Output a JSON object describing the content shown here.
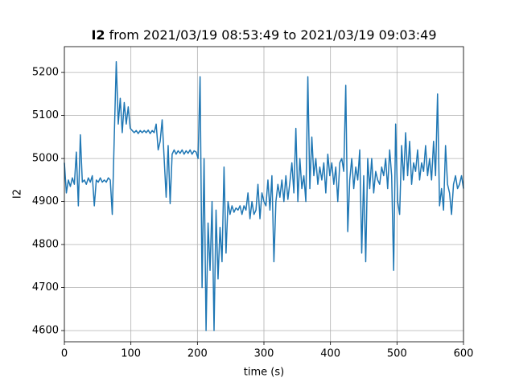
{
  "chart_data": {
    "type": "line",
    "title_bold": "I2",
    "title": "from 2021/03/19 08:53:49 to 2021/03/19 09:03:49",
    "xlabel": "time (s)",
    "ylabel": "I2",
    "xlim": [
      0,
      600
    ],
    "ylim": [
      4574,
      5260
    ],
    "xticks": [
      0,
      100,
      200,
      300,
      400,
      500,
      600
    ],
    "yticks": [
      4600,
      4700,
      4800,
      4900,
      5000,
      5100,
      5200
    ],
    "grid": true,
    "x": [
      0,
      3,
      6,
      9,
      12,
      15,
      18,
      21,
      24,
      27,
      30,
      33,
      36,
      39,
      42,
      45,
      48,
      51,
      54,
      57,
      60,
      63,
      66,
      69,
      72,
      75,
      78,
      81,
      84,
      87,
      90,
      93,
      96,
      99,
      102,
      105,
      108,
      111,
      114,
      117,
      120,
      123,
      126,
      129,
      132,
      135,
      138,
      141,
      144,
      147,
      150,
      153,
      156,
      159,
      162,
      165,
      168,
      171,
      174,
      177,
      180,
      183,
      186,
      189,
      192,
      195,
      198,
      201,
      204,
      207,
      210,
      213,
      216,
      219,
      222,
      225,
      228,
      231,
      234,
      237,
      240,
      243,
      246,
      249,
      252,
      255,
      258,
      261,
      264,
      267,
      270,
      273,
      276,
      279,
      282,
      285,
      288,
      291,
      294,
      297,
      300,
      303,
      306,
      309,
      312,
      315,
      318,
      321,
      324,
      327,
      330,
      333,
      336,
      339,
      342,
      345,
      348,
      351,
      354,
      357,
      360,
      363,
      366,
      369,
      372,
      375,
      378,
      381,
      384,
      387,
      390,
      393,
      396,
      399,
      402,
      405,
      408,
      411,
      414,
      417,
      420,
      423,
      426,
      429,
      432,
      435,
      438,
      441,
      444,
      447,
      450,
      453,
      456,
      459,
      462,
      465,
      468,
      471,
      474,
      477,
      480,
      483,
      486,
      489,
      492,
      495,
      498,
      501,
      504,
      507,
      510,
      513,
      516,
      519,
      522,
      525,
      528,
      531,
      534,
      537,
      540,
      543,
      546,
      549,
      552,
      555,
      558,
      561,
      564,
      567,
      570,
      573,
      576,
      579,
      582,
      585,
      588,
      591,
      594,
      597,
      600
    ],
    "series": [
      {
        "name": "I2",
        "color": "#1f77b4",
        "values": [
          4990,
          4920,
          4950,
          4935,
          4955,
          4940,
          5015,
          4890,
          5055,
          4945,
          4950,
          4940,
          4955,
          4945,
          4960,
          4890,
          4950,
          4945,
          4955,
          4945,
          4950,
          4945,
          4955,
          4950,
          4870,
          5050,
          5225,
          5080,
          5140,
          5060,
          5130,
          5080,
          5120,
          5070,
          5065,
          5060,
          5065,
          5058,
          5065,
          5060,
          5065,
          5060,
          5066,
          5058,
          5065,
          5060,
          5080,
          5020,
          5040,
          5090,
          5000,
          4910,
          5030,
          4895,
          5010,
          5020,
          5010,
          5018,
          5012,
          5020,
          5010,
          5018,
          5012,
          5020,
          5010,
          5018,
          5015,
          5000,
          5190,
          4700,
          5000,
          4600,
          4850,
          4740,
          4900,
          4600,
          4880,
          4720,
          4840,
          4760,
          4980,
          4780,
          4900,
          4870,
          4890,
          4875,
          4885,
          4880,
          4890,
          4870,
          4890,
          4880,
          4920,
          4860,
          4900,
          4870,
          4880,
          4940,
          4860,
          4920,
          4900,
          4890,
          4950,
          4880,
          4960,
          4760,
          4900,
          4940,
          4910,
          4950,
          4900,
          4960,
          4905,
          4945,
          4990,
          4920,
          5070,
          4900,
          5000,
          4930,
          4960,
          4900,
          5190,
          4930,
          5050,
          4960,
          5000,
          4940,
          4980,
          4950,
          4990,
          4920,
          5010,
          4960,
          4990,
          4940,
          4980,
          4900,
          4990,
          5000,
          4970,
          5170,
          4830,
          4950,
          5000,
          4930,
          4980,
          4950,
          5020,
          4780,
          4960,
          4760,
          5000,
          4930,
          5000,
          4920,
          4970,
          4950,
          4940,
          4980,
          4960,
          5000,
          4930,
          5020,
          4960,
          4740,
          5080,
          4900,
          4870,
          5030,
          4950,
          5060,
          4960,
          5040,
          4940,
          4990,
          4970,
          5020,
          4950,
          4990,
          4970,
          5030,
          4960,
          5000,
          4950,
          5040,
          4960,
          5150,
          4890,
          4930,
          4880,
          5030,
          4940,
          4920,
          4870,
          4940,
          4960,
          4930,
          4940,
          4960,
          4930
        ]
      }
    ]
  }
}
